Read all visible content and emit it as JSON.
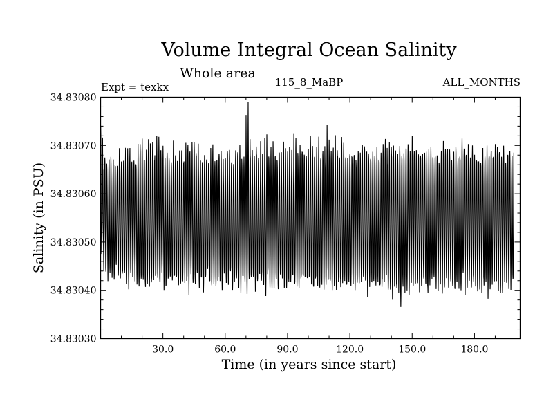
{
  "chart_data": {
    "type": "line",
    "title": "Volume Integral Ocean Salinity",
    "subtitle": "Whole area",
    "annotations": {
      "left": "Expt = texkx",
      "center": "115_8_MaBP",
      "right": "ALL_MONTHS"
    },
    "xlabel": "Time (in years since start)",
    "ylabel": "Salinity (in PSU)",
    "xlim": [
      0,
      202
    ],
    "ylim": [
      34.8303,
      34.8308
    ],
    "xticks": [
      30,
      60,
      90,
      120,
      150,
      180
    ],
    "xtick_labels": [
      "30.0",
      "60.0",
      "90.0",
      "120.0",
      "150.0",
      "180.0"
    ],
    "yticks": [
      34.8303,
      34.8304,
      34.8305,
      34.8306,
      34.8307,
      34.8308
    ],
    "ytick_labels": [
      "34.83030",
      "34.83040",
      "34.83050",
      "34.83060",
      "34.83070",
      "34.83080"
    ],
    "grid": false,
    "series": [
      {
        "name": "salinity",
        "sampling": "monthly",
        "n_points": 2424,
        "seasonal_cycle": {
          "mean": 34.83054,
          "min_typical": 34.830415,
          "max_typical": 34.830665
        },
        "annual_max_envelope": [
          34.83076,
          34.830665,
          34.830695,
          34.83066,
          34.8307,
          34.83067,
          34.83069,
          34.83068,
          34.83067,
          34.8307,
          34.83069,
          34.8307,
          34.830705,
          34.8307,
          34.83072,
          34.83068,
          34.8307,
          34.83069,
          34.830705,
          34.83071,
          34.83072,
          34.83071,
          34.8307,
          34.83073,
          34.8307,
          34.83071,
          34.8307,
          34.83072,
          34.83073,
          34.8307,
          34.83072,
          34.83071,
          34.8307,
          34.83068,
          34.8307,
          34.83071,
          34.83072,
          34.8307,
          34.83071,
          34.83069,
          34.8307,
          34.83072,
          34.83071,
          34.8307,
          34.83072,
          34.83074,
          34.8307,
          34.83072,
          34.83071,
          34.83069,
          34.8307,
          34.83068,
          34.8307,
          34.83072,
          34.83071,
          34.83069,
          34.8307,
          34.83071,
          34.8307,
          34.83069,
          34.8307,
          34.83071,
          34.8307,
          34.83069,
          34.8307,
          34.83071,
          34.8307,
          34.83072,
          34.8307,
          34.83071,
          34.83078,
          34.83079,
          34.8307,
          34.83071,
          34.83072,
          34.8307,
          34.83069,
          34.83071,
          34.8307,
          34.83072,
          34.83074,
          34.83071,
          34.8307,
          34.83072,
          34.83071,
          34.8307,
          34.83072,
          34.83071,
          34.83074,
          34.8307,
          34.83072,
          34.83071,
          34.8307,
          34.83073,
          34.83072,
          34.8307,
          34.83071,
          34.83072,
          34.8307,
          34.83071,
          34.8307,
          34.83072,
          34.83071,
          34.8307,
          34.83073,
          34.83072,
          34.83071,
          34.83072,
          34.8307,
          34.83074,
          34.83072,
          34.83071,
          34.8307,
          34.83072,
          34.83071,
          34.8307,
          34.83074,
          34.83073,
          34.83072,
          34.83071,
          34.83072,
          34.8307,
          34.83071,
          34.83069,
          34.8307,
          34.83071,
          34.8307,
          34.83072,
          34.83071,
          34.83069,
          34.8307,
          34.83072,
          34.8307,
          34.83071,
          34.83069,
          34.8307,
          34.83072,
          34.83074,
          34.8307,
          34.83072,
          34.83071,
          34.8307,
          34.83069,
          34.83071,
          34.8307,
          34.83069,
          34.8307,
          34.83072,
          34.83071,
          34.8307,
          34.83072,
          34.8307,
          34.83071,
          34.8307,
          34.83072,
          34.83071,
          34.8307,
          34.83069,
          34.8307,
          34.83071,
          34.8307,
          34.83072,
          34.83071,
          34.8307,
          34.83071,
          34.83072,
          34.8307,
          34.83071,
          34.8307,
          34.83069,
          34.8307,
          34.83071,
          34.8307,
          34.83072,
          34.83071,
          34.8307,
          34.83069,
          34.8307,
          34.83071,
          34.83072,
          34.8307,
          34.83071,
          34.8307,
          34.83069,
          34.8307,
          34.83071,
          34.83072,
          34.8307,
          34.83071,
          34.8307,
          34.83072,
          34.83071,
          34.8307,
          34.83069,
          34.83071,
          34.8307,
          34.83072,
          34.8307,
          34.83071
        ],
        "annual_min_envelope": [
          34.830475,
          34.83044,
          34.83042,
          34.830415,
          34.83041,
          34.83042,
          34.830405,
          34.83043,
          34.83042,
          34.83041,
          34.830415,
          34.83042,
          34.83041,
          34.8304,
          34.83042,
          34.83041,
          34.83042,
          34.8304,
          34.83038,
          34.83041,
          34.8304,
          34.830385,
          34.83041,
          34.8304,
          34.83039,
          34.83041,
          34.8304,
          34.83042,
          34.830395,
          34.83041,
          34.8304,
          34.83039,
          34.83041,
          34.8304,
          34.83039,
          34.83041,
          34.830395,
          34.830405,
          34.8304,
          34.83039,
          34.83041,
          34.8304,
          34.83039,
          34.83041,
          34.8304,
          34.830395,
          34.83041,
          34.8304,
          34.830405,
          34.83039,
          34.8304,
          34.83041,
          34.830395,
          34.8304,
          34.83041,
          34.83039,
          34.8304,
          34.83041,
          34.830395,
          34.830405,
          34.8304,
          34.83039,
          34.83041,
          34.8304,
          34.830395,
          34.83041,
          34.8304,
          34.83039,
          34.83041,
          34.8304,
          34.830395,
          34.83041,
          34.8304,
          34.830405,
          34.83039,
          34.8304,
          34.83041,
          34.830395,
          34.8304,
          34.83039,
          34.83041,
          34.8304,
          34.830395,
          34.830405,
          34.8304,
          34.83039,
          34.83041,
          34.8304,
          34.83038,
          34.8304,
          34.83039,
          34.83041,
          34.8304,
          34.830395,
          34.830405,
          34.8304,
          34.83039,
          34.83041,
          34.8304,
          34.830395,
          34.83041,
          34.8304,
          34.83039,
          34.830405,
          34.8304,
          34.830395,
          34.83041,
          34.8304,
          34.83039,
          34.8304,
          34.83041,
          34.83038,
          34.8304,
          34.830395,
          34.830405,
          34.83039,
          34.8304,
          34.83041,
          34.830395,
          34.8304,
          34.83039,
          34.83038,
          34.8304,
          34.830395,
          34.83041,
          34.8304,
          34.83039,
          34.8304,
          34.83038,
          34.830395,
          34.8304,
          34.83039,
          34.83038,
          34.8304,
          34.83037,
          34.83039,
          34.83038,
          34.8304,
          34.830375,
          34.83039,
          34.83038,
          34.8304,
          34.83038,
          34.83039,
          34.830345,
          34.83038,
          34.83039,
          34.8304,
          34.83038,
          34.83039,
          34.8304,
          34.83038,
          34.830395,
          34.83039,
          34.83038,
          34.8304,
          34.83039,
          34.83036,
          34.83038,
          34.83039,
          34.8304,
          34.83038,
          34.83039,
          34.830395,
          34.83038,
          34.83039,
          34.8304,
          34.830385,
          34.83039,
          34.8304,
          34.83038,
          34.83039,
          34.830395,
          34.83039,
          34.8304,
          34.830385,
          34.83039,
          34.8304,
          34.83038,
          34.83039,
          34.830395,
          34.83039,
          34.8304,
          34.830385,
          34.83039,
          34.8304,
          34.83038,
          34.83039,
          34.830395,
          34.8304,
          34.83039,
          34.8304,
          34.830385,
          34.83039,
          34.8304,
          34.83039,
          34.83038,
          34.830395,
          34.8304,
          34.83039,
          34.8304
        ]
      }
    ]
  }
}
